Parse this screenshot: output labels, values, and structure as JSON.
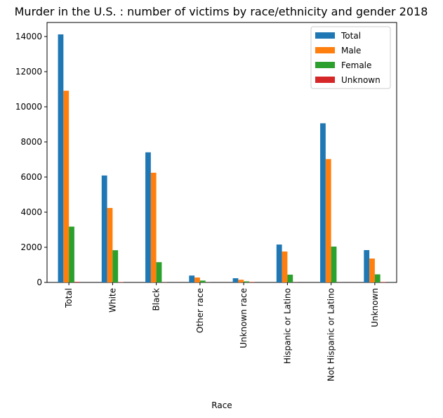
{
  "chart_data": {
    "type": "bar",
    "title": "Murder in the U.S. : number of victims by race/ethnicity and gender 2018",
    "xlabel": "Race",
    "ylabel": "",
    "categories": [
      "Total",
      "White",
      "Black",
      "Other race",
      "Unknown race",
      "Hispanic or Latino",
      "Not Hispanic or Latino",
      "Unknown"
    ],
    "ylim": [
      0,
      14800
    ],
    "yticks": [
      0,
      2000,
      4000,
      6000,
      8000,
      10000,
      12000,
      14000
    ],
    "grid": false,
    "legend_position": "top-right",
    "series": [
      {
        "name": "Total",
        "color": "#1f77b4",
        "values": [
          14123,
          6088,
          7407,
          390,
          238,
          2157,
          9061,
          1840
        ]
      },
      {
        "name": "Male",
        "color": "#ff7f0e",
        "values": [
          10914,
          4238,
          6245,
          280,
          152,
          1759,
          7024,
          1360
        ]
      },
      {
        "name": "Female",
        "color": "#2ca02c",
        "values": [
          3177,
          1833,
          1153,
          105,
          60,
          442,
          2041,
          460
        ]
      },
      {
        "name": "Unknown",
        "color": "#d62728",
        "values": [
          32,
          17,
          9,
          5,
          26,
          6,
          4,
          25
        ]
      }
    ]
  }
}
